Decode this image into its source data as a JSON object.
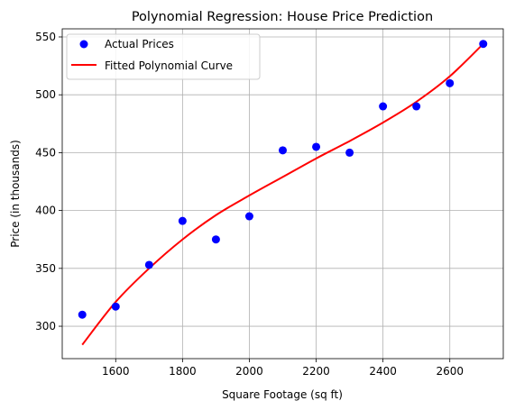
{
  "chart_data": {
    "type": "scatter",
    "title": "Polynomial Regression: House Price Prediction",
    "xlabel": "Square Footage (sq ft)",
    "ylabel": "Price (in thousands)",
    "xlim": [
      1440,
      2760
    ],
    "ylim": [
      272,
      557
    ],
    "xticks": [
      1600,
      1800,
      2000,
      2200,
      2400,
      2600
    ],
    "yticks": [
      300,
      350,
      400,
      450,
      500,
      550
    ],
    "grid": true,
    "legend_placement": "top-left",
    "series": [
      {
        "name": "Actual Prices",
        "kind": "scatter",
        "color": "#0000ff",
        "x": [
          1500,
          1600,
          1700,
          1800,
          1900,
          2000,
          2100,
          2200,
          2300,
          2400,
          2500,
          2600,
          2700
        ],
        "y": [
          310,
          317,
          353,
          391,
          375,
          395,
          452,
          455,
          450,
          490,
          490,
          510,
          544
        ]
      },
      {
        "name": "Fitted Polynomial Curve",
        "kind": "line",
        "color": "#ff0000",
        "x": [
          1500,
          1600,
          1700,
          1800,
          1900,
          2000,
          2100,
          2200,
          2300,
          2400,
          2500,
          2600,
          2700
        ],
        "y": [
          284,
          321,
          350,
          375,
          396,
          413,
          429,
          445,
          460,
          476,
          494,
          516,
          544
        ]
      }
    ]
  }
}
